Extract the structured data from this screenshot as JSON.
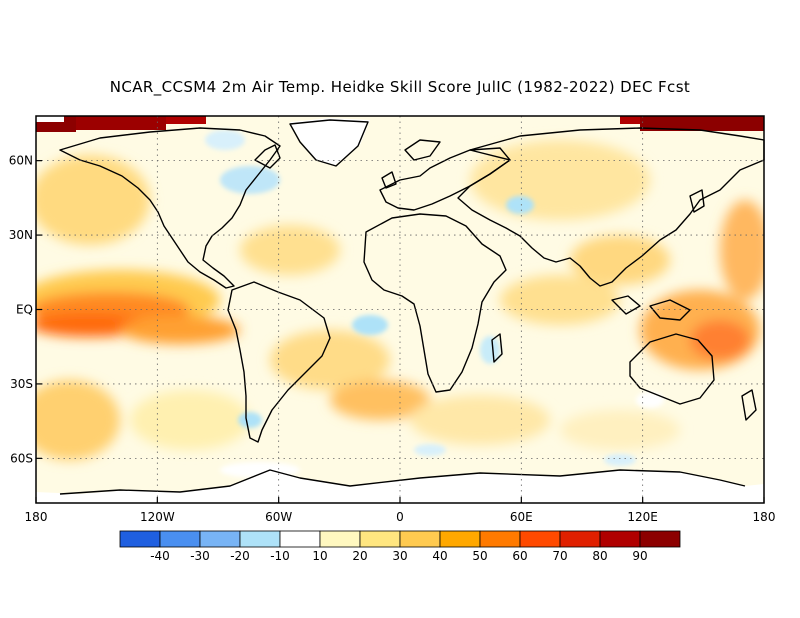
{
  "title": "NCAR_CCSM4 2m Air Temp. Heidke Skill Score JulIC (1982-2022) DEC Fcst",
  "map": {
    "projection": "equirectangular",
    "lon_range": [
      -180,
      180
    ],
    "lat_range": [
      -78,
      78
    ],
    "lat_ticks": [
      {
        "lat": 60,
        "label": "60N"
      },
      {
        "lat": 30,
        "label": "30N"
      },
      {
        "lat": 0,
        "label": "EQ"
      },
      {
        "lat": -30,
        "label": "30S"
      },
      {
        "lat": -60,
        "label": "60S"
      }
    ],
    "lon_ticks": [
      {
        "lon": -180,
        "label": "180"
      },
      {
        "lon": -120,
        "label": "120W"
      },
      {
        "lon": -60,
        "label": "60W"
      },
      {
        "lon": 0,
        "label": "0"
      },
      {
        "lon": 60,
        "label": "60E"
      },
      {
        "lon": 120,
        "label": "120E"
      },
      {
        "lon": 180,
        "label": "180"
      }
    ],
    "grid": "dotted",
    "dominant_pattern": "positive skill (yellow-orange) over most oceans; strongest (red-orange, 50-70) in the tropical eastern Pacific and western tropical Pacific; dark red (>90) near the Arctic edges; scattered negative (blue) patches in North America, Eurasia and the Southern Ocean"
  },
  "colorbar": {
    "labels": [
      "-40",
      "-30",
      "-20",
      "-10",
      "10",
      "20",
      "30",
      "40",
      "50",
      "60",
      "70",
      "80",
      "90"
    ],
    "colors": [
      "#1f5fe0",
      "#4a8ff0",
      "#78b4f5",
      "#aee2f8",
      "#ffffff",
      "#fff8c0",
      "#ffe680",
      "#ffca50",
      "#ffa800",
      "#ff7a00",
      "#ff4a00",
      "#e02000",
      "#b00000",
      "#8c0000"
    ]
  }
}
